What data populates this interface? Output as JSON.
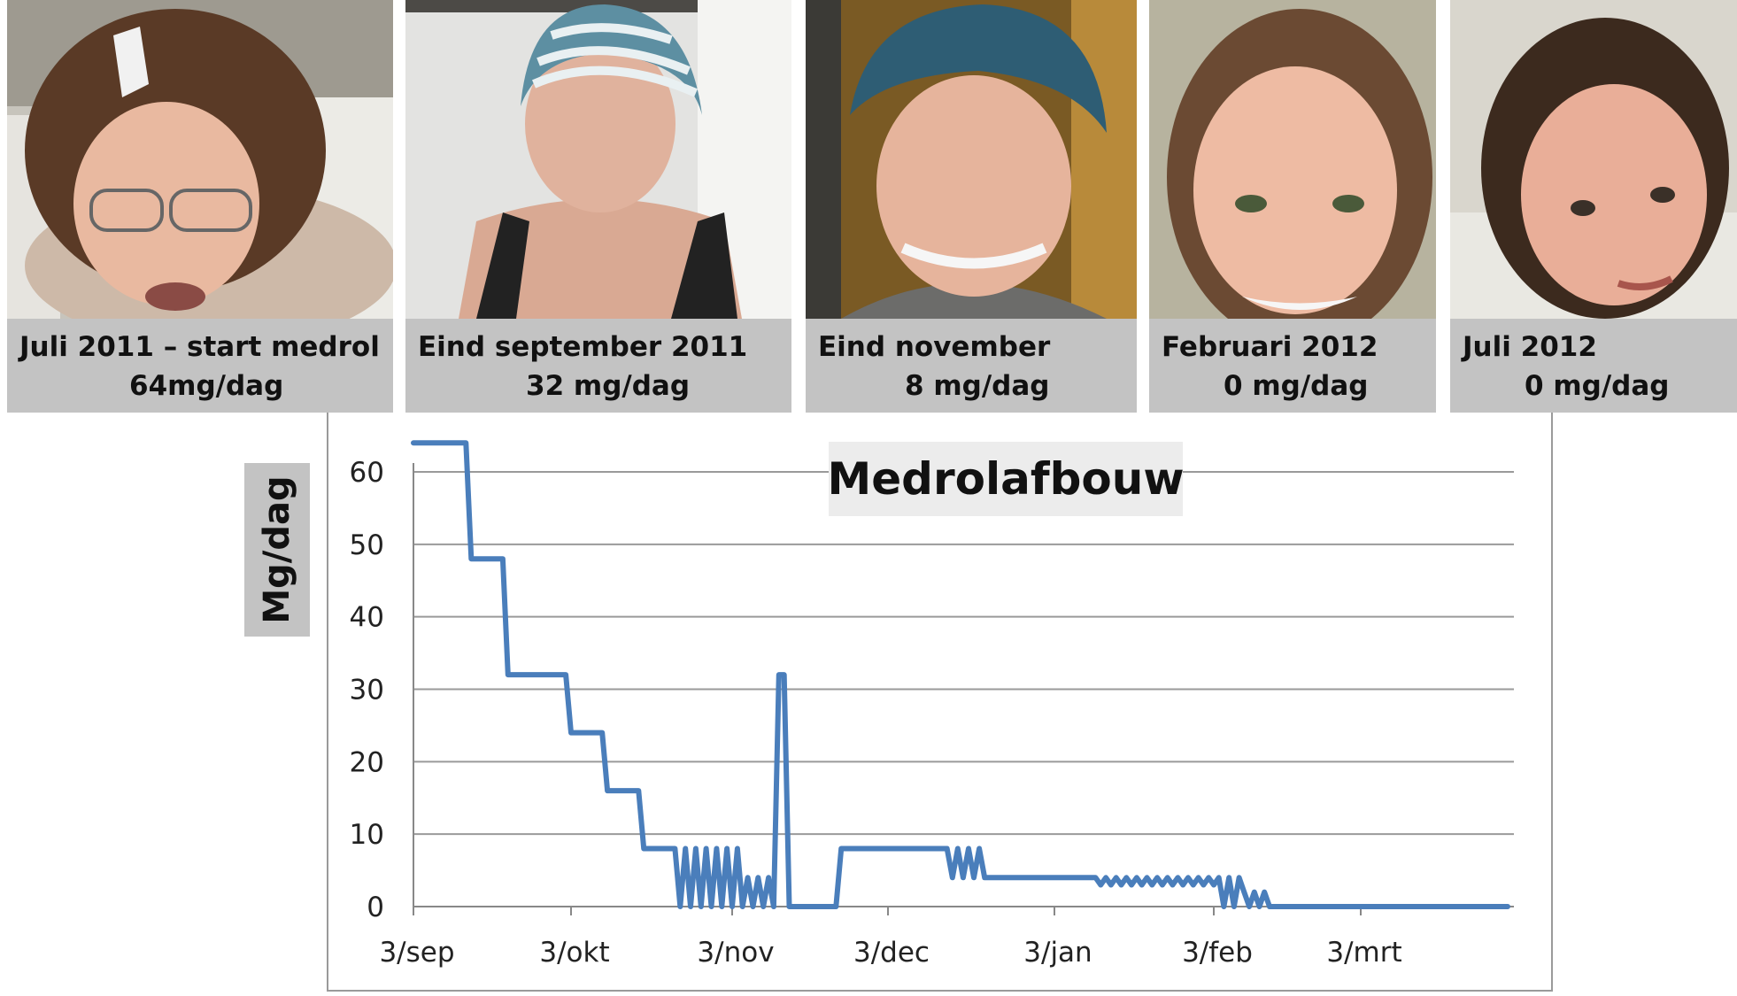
{
  "panels": [
    {
      "caption_line1": "Juli 2011 – start medrol",
      "caption_line2": "64mg/dag"
    },
    {
      "caption_line1": "Eind september 2011",
      "caption_line2": "32 mg/dag"
    },
    {
      "caption_line1": "Eind november",
      "caption_line2": "8 mg/dag"
    },
    {
      "caption_line1": "Februari 2012",
      "caption_line2": "0 mg/dag"
    },
    {
      "caption_line1": "Juli 2012",
      "caption_line2": "0 mg/dag"
    }
  ],
  "chart_data": {
    "type": "line",
    "title": "Medrolafbouw",
    "ylabel": "Mg/dag",
    "xlabel": "",
    "ylim": [
      0,
      60
    ],
    "yticks": [
      0,
      10,
      20,
      30,
      40,
      50,
      60
    ],
    "xticks": [
      "3/sep",
      "3/okt",
      "3/nov",
      "3/dec",
      "3/jan",
      "3/feb",
      "3/mrt"
    ],
    "grid": true,
    "legend": "none",
    "line_color": "#4a7ebb",
    "series": [
      {
        "x": [
          "2011-09-03",
          "2011-09-13",
          "2011-09-14",
          "2011-09-20",
          "2011-09-21",
          "2011-10-02",
          "2011-10-03",
          "2011-10-09",
          "2011-10-10",
          "2011-10-16",
          "2011-10-17",
          "2011-10-23",
          "2011-10-24",
          "2011-10-25",
          "2011-10-26",
          "2011-10-27",
          "2011-10-28",
          "2011-10-29",
          "2011-10-30",
          "2011-10-31",
          "2011-11-01",
          "2011-11-02",
          "2011-11-03",
          "2011-11-04",
          "2011-11-05",
          "2011-11-06",
          "2011-11-07",
          "2011-11-08",
          "2011-11-09",
          "2011-11-10",
          "2011-11-11",
          "2011-11-12",
          "2011-11-13",
          "2011-11-14",
          "2011-11-15",
          "2011-11-16",
          "2011-11-17",
          "2011-11-18",
          "2011-11-23",
          "2011-11-24",
          "2011-12-14",
          "2011-12-15",
          "2011-12-16",
          "2011-12-17",
          "2011-12-18",
          "2011-12-19",
          "2011-12-20",
          "2011-12-21",
          "2011-12-22",
          "2012-01-11",
          "2012-01-12",
          "2012-01-13",
          "2012-01-14",
          "2012-01-15",
          "2012-01-16",
          "2012-01-17",
          "2012-01-18",
          "2012-01-19",
          "2012-01-20",
          "2012-01-21",
          "2012-01-22",
          "2012-01-23",
          "2012-01-24",
          "2012-01-25",
          "2012-01-26",
          "2012-01-27",
          "2012-01-28",
          "2012-01-29",
          "2012-01-30",
          "2012-01-31",
          "2012-02-01",
          "2012-02-02",
          "2012-02-03",
          "2012-02-04",
          "2012-02-05",
          "2012-02-06",
          "2012-02-07",
          "2012-02-08",
          "2012-02-09",
          "2012-02-10",
          "2012-02-11",
          "2012-02-12",
          "2012-02-13",
          "2012-02-14",
          "2012-02-15",
          "2012-02-16",
          "2012-02-17",
          "2012-04-01"
        ],
        "values": [
          64,
          64,
          48,
          48,
          32,
          32,
          24,
          24,
          16,
          16,
          8,
          8,
          0,
          8,
          0,
          8,
          0,
          8,
          0,
          8,
          0,
          8,
          0,
          8,
          0,
          4,
          0,
          4,
          0,
          4,
          0,
          32,
          32,
          0,
          0,
          0,
          0,
          0,
          0,
          8,
          8,
          4,
          8,
          4,
          8,
          4,
          8,
          4,
          4,
          4,
          3,
          4,
          3,
          4,
          3,
          4,
          3,
          4,
          3,
          4,
          3,
          4,
          3,
          4,
          3,
          4,
          3,
          4,
          3,
          4,
          3,
          4,
          3,
          4,
          0,
          4,
          0,
          4,
          2,
          0,
          2,
          0,
          2,
          0,
          0,
          0,
          0,
          0
        ]
      }
    ]
  }
}
